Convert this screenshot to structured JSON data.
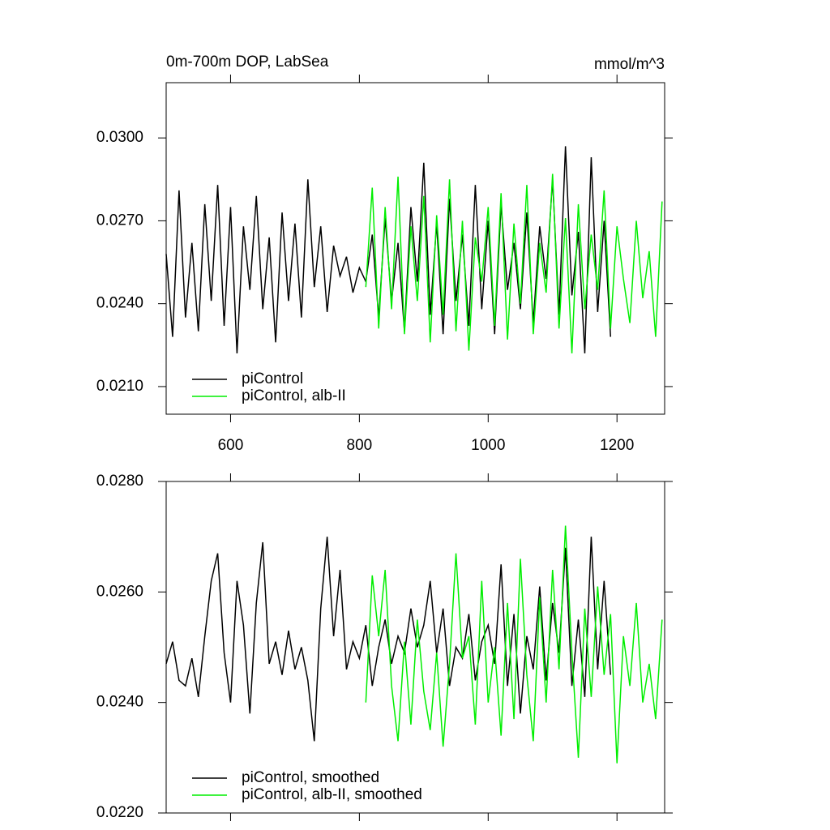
{
  "chart_data": [
    {
      "type": "line",
      "title": "0m-700m DOP, LabSea",
      "units": "mmol/m^3",
      "x": [
        500,
        510,
        520,
        530,
        540,
        550,
        560,
        570,
        580,
        590,
        600,
        610,
        620,
        630,
        640,
        650,
        660,
        670,
        680,
        690,
        700,
        710,
        720,
        730,
        740,
        750,
        760,
        770,
        780,
        790,
        800,
        810,
        820,
        830,
        840,
        850,
        860,
        870,
        880,
        890,
        900,
        910,
        920,
        930,
        940,
        950,
        960,
        970,
        980,
        990,
        1000,
        1010,
        1020,
        1030,
        1040,
        1050,
        1060,
        1070,
        1080,
        1090,
        1100,
        1110,
        1120,
        1130,
        1140,
        1150,
        1160,
        1170,
        1180,
        1190,
        1200,
        1210,
        1220,
        1230,
        1240,
        1250,
        1260,
        1270
      ],
      "xlim": [
        500,
        1274
      ],
      "xticks": [
        600,
        800,
        1000,
        1200
      ],
      "ylim": [
        0.02,
        0.032
      ],
      "yticks": [
        {
          "value": 0.021,
          "label": "0.0210"
        },
        {
          "value": 0.024,
          "label": "0.0240"
        },
        {
          "value": 0.027,
          "label": "0.0270"
        },
        {
          "value": 0.03,
          "label": "0.0300"
        }
      ],
      "legend": "lower left",
      "series": [
        {
          "name": "piControl",
          "color": "#000000",
          "values": [
            0.0258,
            0.0228,
            0.0281,
            0.0235,
            0.0262,
            0.023,
            0.0276,
            0.0241,
            0.0283,
            0.0232,
            0.0275,
            0.0222,
            0.0268,
            0.0245,
            0.0279,
            0.0238,
            0.0264,
            0.0226,
            0.0273,
            0.0241,
            0.0269,
            0.0235,
            0.0285,
            0.0246,
            0.0268,
            0.0237,
            0.0261,
            0.025,
            0.0257,
            0.0244,
            0.0253,
            0.0248,
            0.0265,
            0.0235,
            0.0271,
            0.0241,
            0.0262,
            0.023,
            0.0275,
            0.0248,
            0.0291,
            0.0236,
            0.0269,
            0.0229,
            0.0278,
            0.0241,
            0.0265,
            0.0232,
            0.0283,
            0.0238,
            0.027,
            0.0229,
            0.0276,
            0.0245,
            0.0262,
            0.0238,
            0.0273,
            0.0233,
            0.0268,
            0.0249,
            0.0285,
            0.0236,
            0.0297,
            0.0243,
            0.0266,
            0.0222,
            0.0293,
            0.0237,
            0.027,
            0.0228,
            null,
            null,
            null,
            null,
            null,
            null,
            null,
            null
          ]
        },
        {
          "name": "piControl, alb-II",
          "color": "#00ee00",
          "values": [
            null,
            null,
            null,
            null,
            null,
            null,
            null,
            null,
            null,
            null,
            null,
            null,
            null,
            null,
            null,
            null,
            null,
            null,
            null,
            null,
            null,
            null,
            null,
            null,
            null,
            null,
            null,
            null,
            null,
            null,
            null,
            0.0246,
            0.0282,
            0.0231,
            0.0275,
            0.0238,
            0.0286,
            0.0229,
            0.0268,
            0.0241,
            0.0279,
            0.0226,
            0.0272,
            0.0236,
            0.0285,
            0.023,
            0.027,
            0.0223,
            0.0264,
            0.0248,
            0.0275,
            0.0232,
            0.028,
            0.0227,
            0.0269,
            0.024,
            0.0283,
            0.0229,
            0.0262,
            0.0244,
            0.0287,
            0.0231,
            0.0271,
            0.0222,
            0.0276,
            0.0238,
            0.0265,
            0.0245,
            0.0281,
            0.0231,
            0.0268,
            0.0249,
            0.0233,
            0.027,
            0.0242,
            0.0259,
            0.0228,
            0.0277
          ]
        }
      ]
    },
    {
      "type": "line",
      "x": [
        500,
        510,
        520,
        530,
        540,
        550,
        560,
        570,
        580,
        590,
        600,
        610,
        620,
        630,
        640,
        650,
        660,
        670,
        680,
        690,
        700,
        710,
        720,
        730,
        740,
        750,
        760,
        770,
        780,
        790,
        800,
        810,
        820,
        830,
        840,
        850,
        860,
        870,
        880,
        890,
        900,
        910,
        920,
        930,
        940,
        950,
        960,
        970,
        980,
        990,
        1000,
        1010,
        1020,
        1030,
        1040,
        1050,
        1060,
        1070,
        1080,
        1090,
        1100,
        1110,
        1120,
        1130,
        1140,
        1150,
        1160,
        1170,
        1180,
        1190,
        1200,
        1210,
        1220,
        1230,
        1240,
        1250,
        1260,
        1270
      ],
      "xlim": [
        500,
        1274
      ],
      "ylim": [
        0.022,
        0.028
      ],
      "yticks": [
        {
          "value": 0.022,
          "label": "0.0220"
        },
        {
          "value": 0.024,
          "label": "0.0240"
        },
        {
          "value": 0.026,
          "label": "0.0260"
        },
        {
          "value": 0.028,
          "label": "0.0280"
        }
      ],
      "legend": "lower left",
      "series": [
        {
          "name": "piControl, smoothed",
          "color": "#000000",
          "values": [
            0.0247,
            0.0251,
            0.0244,
            0.0243,
            0.0248,
            0.0241,
            0.0252,
            0.0262,
            0.0267,
            0.0249,
            0.024,
            0.0262,
            0.0254,
            0.0238,
            0.0258,
            0.0269,
            0.0247,
            0.0251,
            0.0245,
            0.0253,
            0.0246,
            0.025,
            0.0244,
            0.0233,
            0.0257,
            0.027,
            0.0252,
            0.0264,
            0.0246,
            0.0251,
            0.0248,
            0.0254,
            0.0243,
            0.025,
            0.0255,
            0.0247,
            0.0252,
            0.0249,
            0.0257,
            0.025,
            0.0254,
            0.0262,
            0.0249,
            0.0257,
            0.0243,
            0.025,
            0.0248,
            0.0256,
            0.0244,
            0.0251,
            0.0254,
            0.0247,
            0.0265,
            0.0243,
            0.0256,
            0.0238,
            0.0252,
            0.0246,
            0.0261,
            0.0244,
            0.0258,
            0.0249,
            0.0268,
            0.0243,
            0.0255,
            0.0241,
            0.027,
            0.0246,
            0.0262,
            0.0245,
            null,
            null,
            null,
            null,
            null,
            null,
            null,
            null
          ]
        },
        {
          "name": "piControl, alb-II, smoothed",
          "color": "#00ee00",
          "values": [
            null,
            null,
            null,
            null,
            null,
            null,
            null,
            null,
            null,
            null,
            null,
            null,
            null,
            null,
            null,
            null,
            null,
            null,
            null,
            null,
            null,
            null,
            null,
            null,
            null,
            null,
            null,
            null,
            null,
            null,
            null,
            0.024,
            0.0263,
            0.0252,
            0.0264,
            0.0243,
            0.0233,
            0.0251,
            0.0236,
            0.0255,
            0.0242,
            0.0235,
            0.0249,
            0.0232,
            0.0247,
            0.0267,
            0.0248,
            0.0252,
            0.0236,
            0.0262,
            0.024,
            0.025,
            0.0234,
            0.0258,
            0.0237,
            0.0266,
            0.0245,
            0.0233,
            0.0259,
            0.024,
            0.0264,
            0.0246,
            0.0272,
            0.0249,
            0.023,
            0.0257,
            0.0241,
            0.0261,
            0.0245,
            0.0256,
            0.0229,
            0.0252,
            0.0243,
            0.0258,
            0.024,
            0.0247,
            0.0237,
            0.0255
          ]
        }
      ]
    }
  ]
}
